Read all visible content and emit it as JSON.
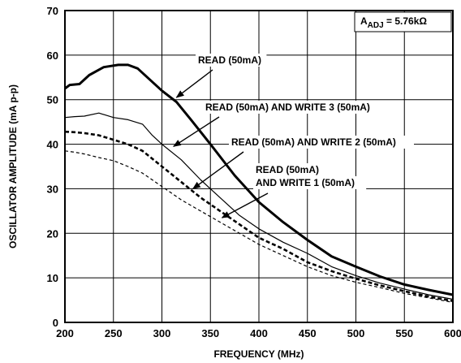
{
  "chart_data": {
    "type": "line",
    "title": "",
    "xlabel": "FREQUENCY (MHz)",
    "ylabel": "OSCILLATOR AMPLITUDE (mA p-p)",
    "xlim": [
      200,
      600
    ],
    "ylim": [
      0,
      70
    ],
    "x_ticks": [
      "200",
      "250",
      "300",
      "350",
      "400",
      "450",
      "500",
      "550",
      "600"
    ],
    "y_ticks": [
      "0",
      "10",
      "20",
      "30",
      "40",
      "50",
      "60",
      "70"
    ],
    "grid": true,
    "badge": {
      "prefix": "A",
      "subscript": "ADJ",
      "value": " = 5.76kΩ"
    },
    "series": [
      {
        "name": "READ (50mA)",
        "style": "thick",
        "x": [
          200,
          205,
          215,
          225,
          240,
          255,
          265,
          275,
          285,
          300,
          315,
          330,
          350,
          375,
          400,
          425,
          450,
          475,
          500,
          525,
          550,
          575,
          600
        ],
        "y": [
          52.5,
          53.3,
          53.5,
          55.5,
          57.3,
          57.8,
          57.8,
          57.0,
          55.0,
          52.0,
          49.5,
          45.5,
          40.0,
          33.0,
          27.0,
          22.5,
          18.5,
          14.8,
          12.5,
          10.3,
          8.5,
          7.3,
          6.2
        ]
      },
      {
        "name": "READ (50mA) AND WRITE 3 (50mA)",
        "style": "thin",
        "x": [
          200,
          210,
          220,
          235,
          250,
          265,
          280,
          290,
          300,
          320,
          340,
          360,
          380,
          400,
          425,
          450,
          475,
          500,
          525,
          550,
          575,
          600
        ],
        "y": [
          46.0,
          46.2,
          46.3,
          47.0,
          46.0,
          45.5,
          44.5,
          42.0,
          40.0,
          36.5,
          32.0,
          28.0,
          24.0,
          21.0,
          18.0,
          15.5,
          12.5,
          10.5,
          8.8,
          7.5,
          6.2,
          5.2
        ]
      },
      {
        "name": "READ (50mA) AND WRITE 2 (50mA)",
        "style": "thick-dashed",
        "x": [
          200,
          210,
          220,
          235,
          250,
          265,
          280,
          300,
          320,
          340,
          360,
          380,
          400,
          425,
          450,
          475,
          500,
          525,
          550,
          575,
          600
        ],
        "y": [
          42.8,
          42.7,
          42.5,
          42.0,
          41.0,
          40.0,
          38.5,
          35.0,
          31.5,
          28.0,
          25.0,
          22.0,
          19.0,
          16.5,
          13.5,
          11.5,
          9.8,
          8.3,
          7.0,
          5.8,
          4.8
        ]
      },
      {
        "name": "READ (50mA) AND WRITE 1 (50mA)",
        "style": "thin-dashed",
        "x": [
          200,
          210,
          220,
          235,
          250,
          265,
          280,
          300,
          320,
          340,
          360,
          380,
          400,
          425,
          450,
          475,
          500,
          525,
          550,
          575,
          600
        ],
        "y": [
          38.5,
          38.2,
          37.8,
          37.0,
          36.3,
          35.0,
          33.5,
          30.5,
          27.5,
          25.0,
          22.5,
          20.0,
          17.5,
          15.0,
          12.5,
          10.5,
          9.0,
          7.8,
          6.5,
          5.5,
          4.5
        ]
      }
    ],
    "annotations": [
      {
        "lines": [
          "READ (50mA)"
        ],
        "target": [
          315,
          50.5
        ]
      },
      {
        "lines": [
          "READ (50mA) AND WRITE 3 (50mA)"
        ],
        "target": [
          312,
          39.5
        ]
      },
      {
        "lines": [
          "READ (50mA) AND WRITE 2 (50mA)"
        ],
        "target": [
          332,
          30.0
        ]
      },
      {
        "lines": [
          "READ (50mA)",
          "AND WRITE 1 (50mA)"
        ],
        "target": [
          362,
          23.5
        ]
      }
    ]
  }
}
